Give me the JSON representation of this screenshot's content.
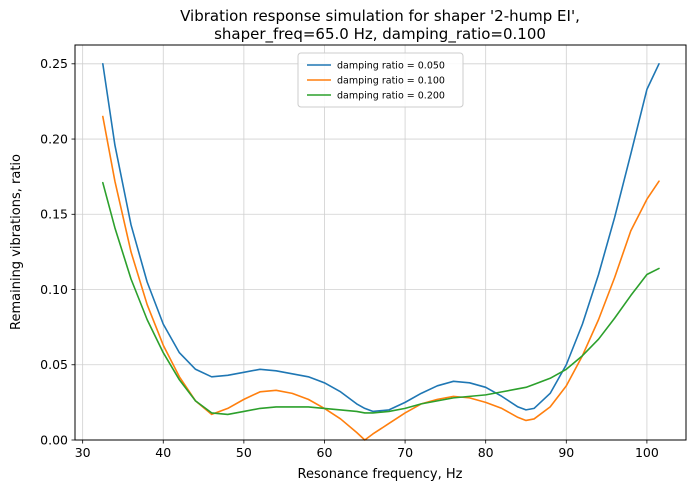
{
  "chart_data": {
    "type": "line",
    "title_line1": "Vibration response simulation for shaper '2-hump EI',",
    "title_line2": "shaper_freq=65.0 Hz, damping_ratio=0.100",
    "xlabel": "Resonance frequency, Hz",
    "ylabel": "Remaining vibrations, ratio",
    "grid": true,
    "legend_position": "upper center",
    "xlim": [
      29.05,
      104.85
    ],
    "ylim": [
      0,
      0.2625
    ],
    "xticks": {
      "values": [
        30,
        40,
        50,
        60,
        70,
        80,
        90,
        100
      ],
      "labels": [
        "30",
        "40",
        "50",
        "60",
        "70",
        "80",
        "90",
        "100"
      ]
    },
    "yticks": {
      "values": [
        0.0,
        0.05,
        0.1,
        0.15,
        0.2,
        0.25
      ],
      "labels": [
        "0.00",
        "0.05",
        "0.10",
        "0.15",
        "0.20",
        "0.25"
      ]
    },
    "x": [
      32.5,
      34,
      36,
      38,
      40,
      42,
      44,
      46,
      48,
      50,
      52,
      54,
      56,
      58,
      60,
      62,
      64,
      65,
      66,
      68,
      70,
      72,
      74,
      76,
      78,
      80,
      82,
      84,
      85,
      86,
      88,
      90,
      92,
      94,
      96,
      98,
      100,
      101.5
    ],
    "series": [
      {
        "name": "damping ratio = 0.050",
        "color": "#1f77b4",
        "values": [
          0.25,
          0.196,
          0.143,
          0.105,
          0.077,
          0.058,
          0.047,
          0.042,
          0.043,
          0.045,
          0.047,
          0.046,
          0.044,
          0.042,
          0.038,
          0.032,
          0.024,
          0.021,
          0.019,
          0.02,
          0.025,
          0.031,
          0.036,
          0.039,
          0.038,
          0.035,
          0.029,
          0.022,
          0.02,
          0.021,
          0.031,
          0.05,
          0.077,
          0.11,
          0.148,
          0.19,
          0.233,
          0.25
        ]
      },
      {
        "name": "damping ratio = 0.100",
        "color": "#ff7f0e",
        "values": [
          0.215,
          0.172,
          0.125,
          0.09,
          0.063,
          0.042,
          0.026,
          0.017,
          0.021,
          0.027,
          0.032,
          0.033,
          0.031,
          0.027,
          0.021,
          0.014,
          0.005,
          0.0,
          0.004,
          0.011,
          0.018,
          0.024,
          0.027,
          0.029,
          0.028,
          0.025,
          0.021,
          0.015,
          0.013,
          0.014,
          0.022,
          0.036,
          0.056,
          0.08,
          0.108,
          0.139,
          0.16,
          0.172
        ]
      },
      {
        "name": "damping ratio = 0.200",
        "color": "#2ca02c",
        "values": [
          0.171,
          0.141,
          0.107,
          0.08,
          0.058,
          0.04,
          0.026,
          0.018,
          0.017,
          0.019,
          0.021,
          0.022,
          0.022,
          0.022,
          0.021,
          0.02,
          0.019,
          0.018,
          0.018,
          0.019,
          0.021,
          0.024,
          0.026,
          0.028,
          0.029,
          0.03,
          0.032,
          0.034,
          0.035,
          0.037,
          0.041,
          0.047,
          0.056,
          0.067,
          0.081,
          0.096,
          0.11,
          0.114
        ]
      }
    ],
    "style": {
      "grid_color": "#d0d0d0",
      "spine_color": "#000000",
      "legend_border_color": "#cccccc",
      "background": "#ffffff"
    }
  }
}
